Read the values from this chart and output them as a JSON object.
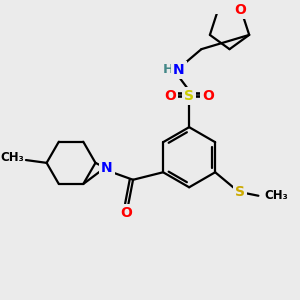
{
  "background_color": "#ebebeb",
  "bond_color": "#000000",
  "bond_lw": 1.6,
  "atom_colors": {
    "N": "#0000ff",
    "O": "#ff0000",
    "S_sulfo": "#cccc00",
    "S_thio": "#ccaa00",
    "H": "#448888"
  },
  "figsize": [
    3.0,
    3.0
  ],
  "dpi": 100,
  "xlim": [
    0,
    300
  ],
  "ylim": [
    0,
    300
  ]
}
